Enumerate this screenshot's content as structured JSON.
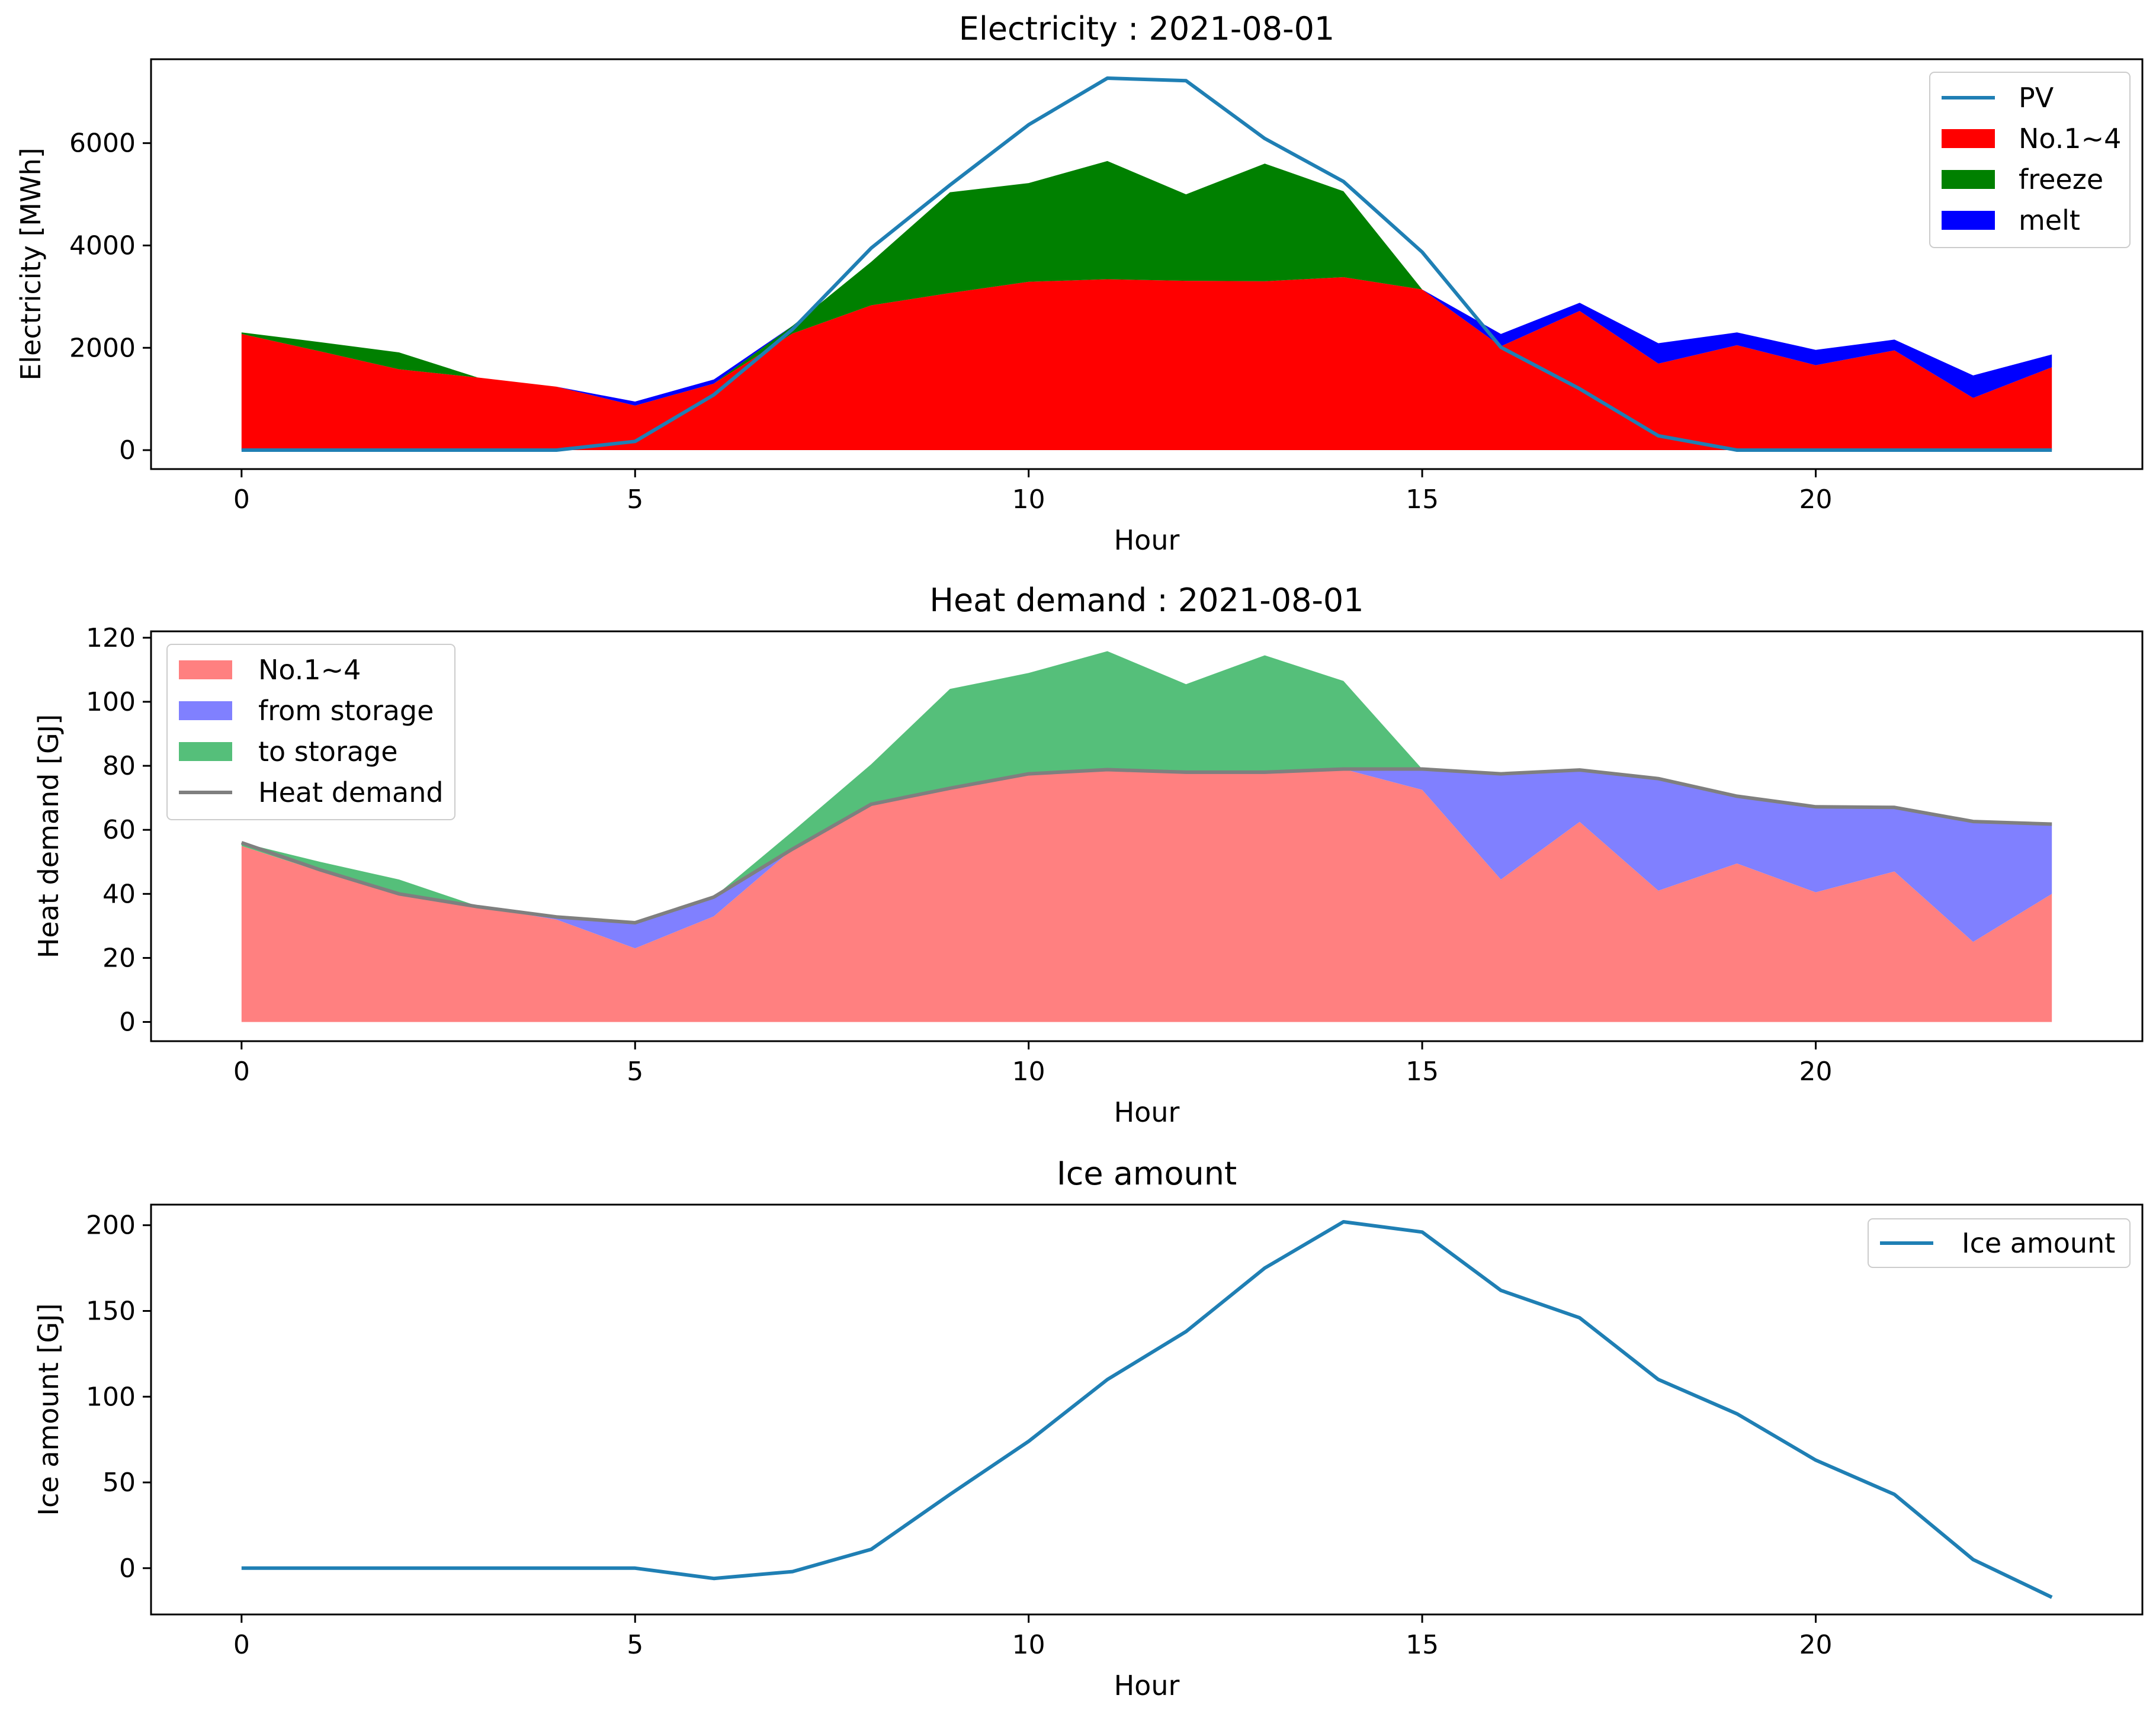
{
  "chart_data": [
    {
      "type": "area",
      "title": "Electricity : 2021-08-01",
      "xlabel": "Hour",
      "ylabel": "Electricity [MWh]",
      "xlim": [
        -1.15,
        24.15
      ],
      "ylim": [
        -370,
        7640
      ],
      "xticks": [
        0,
        5,
        10,
        15,
        20
      ],
      "yticks": [
        0,
        2000,
        4000,
        6000
      ],
      "legend_position": "top-right",
      "x": [
        0,
        1,
        2,
        3,
        4,
        5,
        6,
        7,
        8,
        9,
        10,
        11,
        12,
        13,
        14,
        15,
        16,
        17,
        18,
        19,
        20,
        21,
        22,
        23
      ],
      "stacked_series": [
        {
          "name": "No.1~4",
          "color": "#ff0000",
          "values": [
            2270,
            1930,
            1580,
            1420,
            1240,
            870,
            1300,
            2280,
            2830,
            3070,
            3290,
            3340,
            3310,
            3300,
            3380,
            3140,
            2030,
            2720,
            1690,
            2050,
            1660,
            1950,
            1020,
            1620
          ]
        },
        {
          "name": "freeze",
          "color": "#008000",
          "values": [
            30,
            180,
            330,
            0,
            0,
            0,
            0,
            150,
            850,
            1970,
            1930,
            2310,
            1690,
            2300,
            1680,
            0,
            0,
            0,
            0,
            0,
            0,
            0,
            0,
            0
          ]
        },
        {
          "name": "melt",
          "color": "#0000ff",
          "values": [
            0,
            0,
            0,
            0,
            0,
            80,
            80,
            0,
            0,
            0,
            0,
            0,
            0,
            0,
            0,
            0,
            240,
            160,
            400,
            250,
            300,
            210,
            440,
            250
          ]
        }
      ],
      "line_series": [
        {
          "name": "PV",
          "color": "#1f7fb4",
          "values": [
            0,
            0,
            0,
            0,
            0,
            170,
            1080,
            2360,
            3950,
            5180,
            6360,
            7270,
            7220,
            6090,
            5250,
            3870,
            2010,
            1200,
            280,
            0,
            0,
            0,
            0,
            0
          ]
        }
      ]
    },
    {
      "type": "area",
      "title": "Heat demand : 2021-08-01",
      "xlabel": "Hour",
      "ylabel": "Heat demand [GJ]",
      "xlim": [
        -1.15,
        24.15
      ],
      "ylim": [
        -6,
        122
      ],
      "xticks": [
        0,
        5,
        10,
        15,
        20
      ],
      "yticks": [
        0,
        20,
        40,
        60,
        80,
        100,
        120
      ],
      "legend_position": "top-left",
      "x": [
        0,
        1,
        2,
        3,
        4,
        5,
        6,
        7,
        8,
        9,
        10,
        11,
        12,
        13,
        14,
        15,
        16,
        17,
        18,
        19,
        20,
        21,
        22,
        23
      ],
      "stacked_series": [
        {
          "name": "No.1~4",
          "color": "#ff8080",
          "values": [
            55,
            47,
            40,
            36,
            32,
            23,
            33,
            54,
            68,
            73,
            77.5,
            78.8,
            78,
            78,
            79,
            72.5,
            44.5,
            62.5,
            41,
            49.5,
            40.5,
            47,
            25,
            40
          ]
        },
        {
          "name": "from storage",
          "color": "#8080ff",
          "values": [
            0,
            0,
            0,
            0,
            0.8,
            7.6,
            6,
            0,
            0,
            0,
            0,
            0,
            0,
            0,
            0,
            6.5,
            33,
            16.2,
            35,
            21,
            26.7,
            20,
            37.6,
            21.8
          ]
        },
        {
          "name": "to storage",
          "color": "#55bf7a",
          "values": [
            1,
            3,
            4.5,
            0.2,
            0,
            0,
            0,
            5.5,
            12.5,
            31,
            31.5,
            37,
            27.5,
            36.5,
            27.5,
            0,
            0,
            0,
            0,
            0,
            0,
            0,
            0,
            0
          ]
        }
      ],
      "line_series": [
        {
          "name": "Heat demand",
          "color": "#7f7f7f",
          "values": [
            56,
            47.5,
            40,
            36,
            32.8,
            31,
            39,
            54,
            68,
            73,
            77.5,
            78.8,
            78,
            78,
            79,
            79,
            77.5,
            78.7,
            76,
            70.5,
            67.2,
            67,
            62.6,
            61.8
          ]
        }
      ]
    },
    {
      "type": "line",
      "title": "Ice amount",
      "xlabel": "Hour",
      "ylabel": "Ice amount [GJ]",
      "xlim": [
        -1.15,
        24.15
      ],
      "ylim": [
        -27,
        212
      ],
      "xticks": [
        0,
        5,
        10,
        15,
        20
      ],
      "yticks": [
        0,
        50,
        100,
        150,
        200
      ],
      "legend_position": "top-right",
      "x": [
        0,
        1,
        2,
        3,
        4,
        5,
        6,
        7,
        8,
        9,
        10,
        11,
        12,
        13,
        14,
        15,
        16,
        17,
        18,
        19,
        20,
        21,
        22,
        23
      ],
      "line_series": [
        {
          "name": "Ice amount",
          "color": "#1f7fb4",
          "values": [
            0,
            0,
            0,
            0,
            0,
            0,
            -6,
            -2,
            11,
            43,
            74,
            110,
            138,
            175,
            202,
            196,
            162,
            146,
            110,
            90,
            63,
            43,
            5,
            -17
          ]
        }
      ]
    }
  ]
}
